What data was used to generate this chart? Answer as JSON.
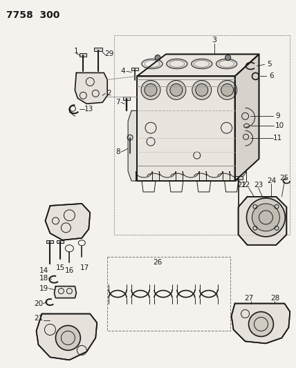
{
  "title": "7758  300",
  "bg_color": "#f5f2ed",
  "line_color": "#1a1a1a",
  "lw_main": 1.2,
  "lw_thin": 0.7,
  "lw_leader": 0.6,
  "fig_w": 4.28,
  "fig_h": 5.33,
  "dpi": 100,
  "label_fontsize": 7.5,
  "title_fontsize": 10,
  "parts_box_border": "#888888",
  "gray_fill": "#c8c8c8",
  "mid_gray": "#909090"
}
